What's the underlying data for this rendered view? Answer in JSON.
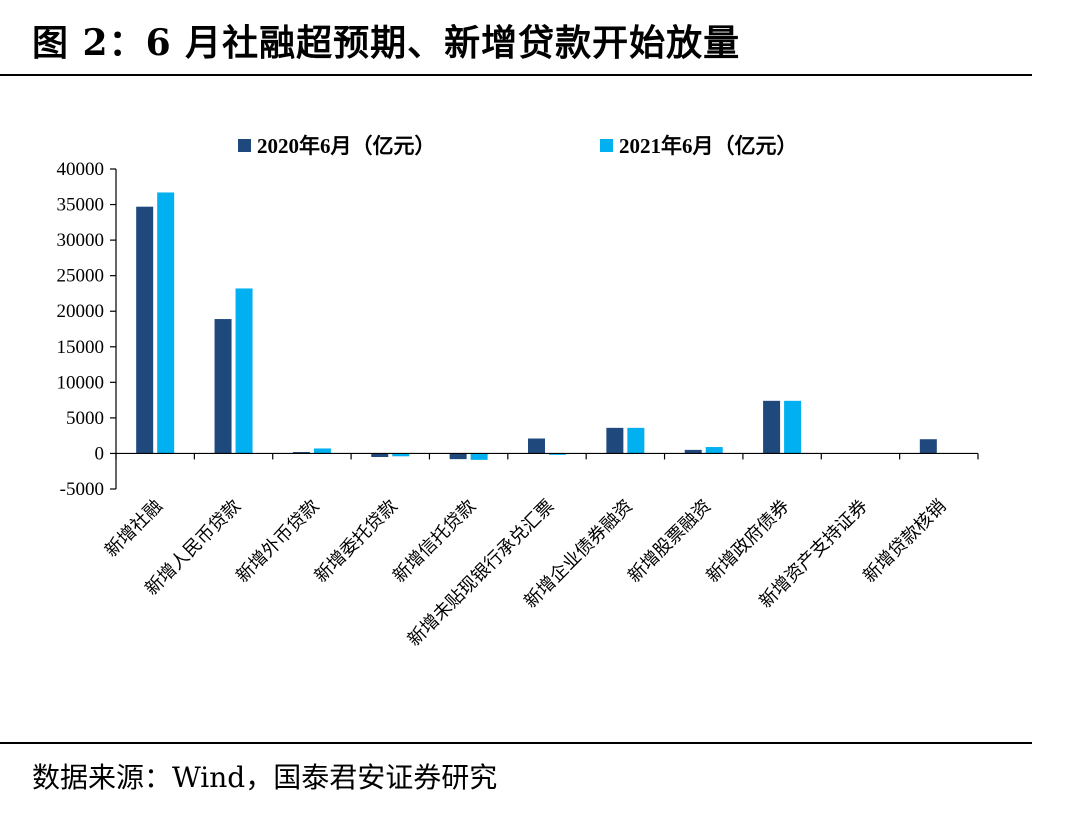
{
  "figure": {
    "title": "图 2：6 月社融超预期、新增贷款开始放量",
    "source": "数据来源：Wind，国泰君安证券研究"
  },
  "chart_data": {
    "type": "bar",
    "categories": [
      "新增社融",
      "新增人民币贷款",
      "新增外币贷款",
      "新增委托贷款",
      "新增信托贷款",
      "新增未贴现银行承兑汇票",
      "新增企业债券融资",
      "新增股票融资",
      "新增政府债券",
      "新增资产支持证券",
      "新增贷款核销"
    ],
    "series": [
      {
        "name": "2020年6月（亿元）",
        "color": "#1F497D",
        "values": [
          34700,
          18900,
          200,
          -500,
          -800,
          2100,
          3600,
          500,
          7400,
          0,
          2000
        ]
      },
      {
        "name": "2021年6月（亿元）",
        "color": "#00B0F0",
        "values": [
          36700,
          23200,
          700,
          -400,
          -900,
          -200,
          3600,
          900,
          7400,
          0,
          0
        ]
      }
    ],
    "ylim": [
      -5000,
      40000
    ],
    "yticks": [
      "40000",
      "35000",
      "30000",
      "25000",
      "20000",
      "15000",
      "10000",
      "5000",
      "0",
      "-5000"
    ],
    "legend_position": "top",
    "grid": false
  }
}
